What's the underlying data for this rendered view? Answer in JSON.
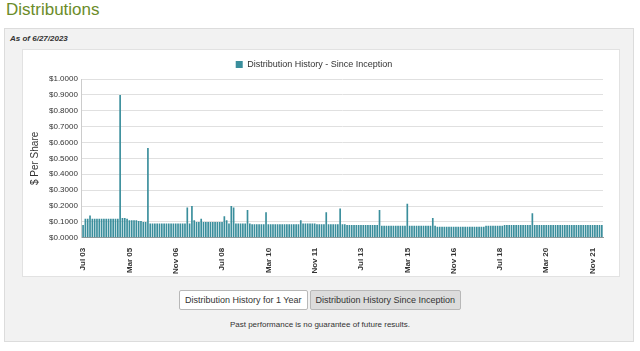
{
  "heading": "Distributions",
  "as_of": "As of 6/27/2023",
  "buttons": [
    "Distribution History for 1 Year",
    "Distribution History Since Inception"
  ],
  "disclaimer": "Past performance is no guarantee of future results.",
  "chart_data": {
    "type": "bar",
    "ylabel": "$ Per Share",
    "legend": "top",
    "grid": true,
    "ylim": [
      0,
      1
    ],
    "yticks": [
      {
        "value": 0,
        "label": "$0.0000"
      },
      {
        "value": 0.1,
        "label": "$0.1000"
      },
      {
        "value": 0.2,
        "label": "$0.2000"
      },
      {
        "value": 0.3,
        "label": "$0.3000"
      },
      {
        "value": 0.4,
        "label": "$0.4000"
      },
      {
        "value": 0.5,
        "label": "$0.5000"
      },
      {
        "value": 0.6,
        "label": "$0.6000"
      },
      {
        "value": 0.7,
        "label": "$0.7000"
      },
      {
        "value": 0.8,
        "label": "$0.8000"
      },
      {
        "value": 0.9,
        "label": "$0.9000"
      },
      {
        "value": 1,
        "label": "$1.0000"
      }
    ],
    "categories": [
      "Jul 03",
      null,
      null,
      null,
      null,
      null,
      null,
      null,
      null,
      null,
      null,
      null,
      null,
      null,
      null,
      null,
      null,
      null,
      null,
      null,
      "Mar 05",
      null,
      null,
      null,
      null,
      null,
      null,
      null,
      null,
      null,
      null,
      null,
      null,
      null,
      null,
      null,
      null,
      null,
      null,
      null,
      "Nov 06",
      null,
      null,
      null,
      null,
      null,
      null,
      null,
      null,
      null,
      null,
      null,
      null,
      null,
      null,
      null,
      null,
      null,
      null,
      null,
      "Jul 08",
      null,
      null,
      null,
      null,
      null,
      null,
      null,
      null,
      null,
      null,
      null,
      null,
      null,
      null,
      null,
      null,
      null,
      null,
      null,
      "Mar 10",
      null,
      null,
      null,
      null,
      null,
      null,
      null,
      null,
      null,
      null,
      null,
      null,
      null,
      null,
      null,
      null,
      null,
      null,
      null,
      "Nov 11",
      null,
      null,
      null,
      null,
      null,
      null,
      null,
      null,
      null,
      null,
      null,
      null,
      null,
      null,
      null,
      null,
      null,
      null,
      null,
      "Jul 13",
      null,
      null,
      null,
      null,
      null,
      null,
      null,
      null,
      null,
      null,
      null,
      null,
      null,
      null,
      null,
      null,
      null,
      null,
      null,
      "Mar 15",
      null,
      null,
      null,
      null,
      null,
      null,
      null,
      null,
      null,
      null,
      null,
      null,
      null,
      null,
      null,
      null,
      null,
      null,
      null,
      "Nov 16",
      null,
      null,
      null,
      null,
      null,
      null,
      null,
      null,
      null,
      null,
      null,
      null,
      null,
      null,
      null,
      null,
      null,
      null,
      null,
      "Jul 18",
      null,
      null,
      null,
      null,
      null,
      null,
      null,
      null,
      null,
      null,
      null,
      null,
      null,
      null,
      null,
      null,
      null,
      null,
      null,
      "Mar 20",
      null,
      null,
      null,
      null,
      null,
      null,
      null,
      null,
      null,
      null,
      null,
      null,
      null,
      null,
      null,
      null,
      null,
      null,
      null,
      "Nov 21",
      null,
      null,
      null,
      null
    ],
    "series": [
      {
        "name": "Distribution History - Since Inception",
        "color": "#3a8e9c",
        "values": [
          0.08,
          0.12,
          0.12,
          0.14,
          0.12,
          0.12,
          0.12,
          0.12,
          0.12,
          0.12,
          0.12,
          0.12,
          0.12,
          0.12,
          0.12,
          0.12,
          0.9,
          0.125,
          0.125,
          0.12,
          0.11,
          0.11,
          0.11,
          0.11,
          0.105,
          0.105,
          0.1,
          0.1,
          0.565,
          0.09,
          0.09,
          0.09,
          0.09,
          0.09,
          0.09,
          0.09,
          0.09,
          0.09,
          0.09,
          0.09,
          0.09,
          0.09,
          0.09,
          0.09,
          0.09,
          0.19,
          0.09,
          0.2,
          0.11,
          0.1,
          0.1,
          0.12,
          0.1,
          0.1,
          0.1,
          0.1,
          0.1,
          0.1,
          0.1,
          0.1,
          0.1,
          0.135,
          0.11,
          0.09,
          0.2,
          0.19,
          0.09,
          0.09,
          0.09,
          0.09,
          0.09,
          0.175,
          0.09,
          0.085,
          0.085,
          0.085,
          0.085,
          0.085,
          0.085,
          0.16,
          0.085,
          0.085,
          0.085,
          0.085,
          0.085,
          0.085,
          0.085,
          0.085,
          0.085,
          0.085,
          0.085,
          0.085,
          0.085,
          0.085,
          0.11,
          0.09,
          0.09,
          0.09,
          0.09,
          0.09,
          0.09,
          0.085,
          0.085,
          0.085,
          0.085,
          0.16,
          0.085,
          0.085,
          0.085,
          0.085,
          0.085,
          0.185,
          0.085,
          0.085,
          0.08,
          0.08,
          0.08,
          0.08,
          0.08,
          0.08,
          0.08,
          0.08,
          0.08,
          0.08,
          0.08,
          0.08,
          0.08,
          0.08,
          0.175,
          0.075,
          0.075,
          0.075,
          0.075,
          0.075,
          0.075,
          0.075,
          0.075,
          0.075,
          0.075,
          0.075,
          0.215,
          0.075,
          0.075,
          0.075,
          0.075,
          0.075,
          0.075,
          0.075,
          0.075,
          0.075,
          0.075,
          0.125,
          0.075,
          0.07,
          0.07,
          0.07,
          0.07,
          0.07,
          0.07,
          0.07,
          0.07,
          0.07,
          0.07,
          0.07,
          0.07,
          0.07,
          0.07,
          0.07,
          0.07,
          0.07,
          0.07,
          0.07,
          0.07,
          0.07,
          0.075,
          0.075,
          0.075,
          0.075,
          0.075,
          0.075,
          0.075,
          0.075,
          0.08,
          0.08,
          0.08,
          0.08,
          0.08,
          0.08,
          0.08,
          0.08,
          0.08,
          0.08,
          0.08,
          0.08,
          0.155,
          0.08,
          0.08,
          0.08,
          0.08,
          0.08,
          0.08,
          0.08,
          0.08,
          0.08,
          0.08,
          0.08,
          0.08,
          0.08,
          0.08,
          0.08,
          0.08,
          0.08,
          0.08,
          0.08,
          0.08,
          0.08,
          0.08,
          0.08,
          0.08,
          0.08,
          0.08,
          0.08,
          0.08,
          0.08,
          0.08
        ]
      }
    ]
  }
}
